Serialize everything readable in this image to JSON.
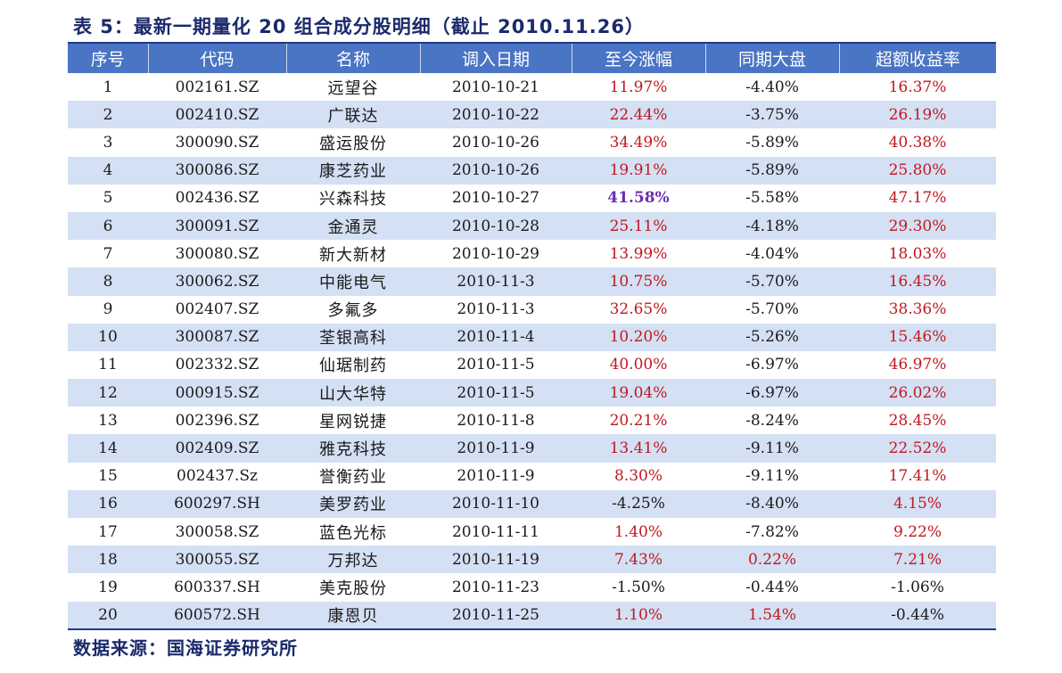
{
  "title": "表 5：最新一期量化 20 组合成分股明细（截止 2010.11.26）",
  "source": "数据来源：国海证券研究所",
  "colors": {
    "header_bg": "#4a74c4",
    "alt_row": "#d4e0f4",
    "positive": "#c0181f",
    "highlight": "#6a2fb0"
  },
  "headers": [
    "序号",
    "代码",
    "名称",
    "调入日期",
    "至今涨幅",
    "同期大盘",
    "超额收益率"
  ],
  "rows": [
    {
      "no": "1",
      "code": "002161.SZ",
      "name": "远望谷",
      "date": "2010-10-21",
      "gain": "11.97%",
      "market": "-4.40%",
      "excess": "16.37%"
    },
    {
      "no": "2",
      "code": "002410.SZ",
      "name": "广联达",
      "date": "2010-10-22",
      "gain": "22.44%",
      "market": "-3.75%",
      "excess": "26.19%"
    },
    {
      "no": "3",
      "code": "300090.SZ",
      "name": "盛运股份",
      "date": "2010-10-26",
      "gain": "34.49%",
      "market": "-5.89%",
      "excess": "40.38%"
    },
    {
      "no": "4",
      "code": "300086.SZ",
      "name": "康芝药业",
      "date": "2010-10-26",
      "gain": "19.91%",
      "market": "-5.89%",
      "excess": "25.80%"
    },
    {
      "no": "5",
      "code": "002436.SZ",
      "name": "兴森科技",
      "date": "2010-10-27",
      "gain": "41.58%",
      "market": "-5.58%",
      "excess": "47.17%"
    },
    {
      "no": "6",
      "code": "300091.SZ",
      "name": "金通灵",
      "date": "2010-10-28",
      "gain": "25.11%",
      "market": "-4.18%",
      "excess": "29.30%"
    },
    {
      "no": "7",
      "code": "300080.SZ",
      "name": "新大新材",
      "date": "2010-10-29",
      "gain": "13.99%",
      "market": "-4.04%",
      "excess": "18.03%"
    },
    {
      "no": "8",
      "code": "300062.SZ",
      "name": "中能电气",
      "date": "2010-11-3",
      "gain": "10.75%",
      "market": "-5.70%",
      "excess": "16.45%"
    },
    {
      "no": "9",
      "code": "002407.SZ",
      "name": "多氟多",
      "date": "2010-11-3",
      "gain": "32.65%",
      "market": "-5.70%",
      "excess": "38.36%"
    },
    {
      "no": "10",
      "code": "300087.SZ",
      "name": "荃银高科",
      "date": "2010-11-4",
      "gain": "10.20%",
      "market": "-5.26%",
      "excess": "15.46%"
    },
    {
      "no": "11",
      "code": "002332.SZ",
      "name": "仙琚制药",
      "date": "2010-11-5",
      "gain": "40.00%",
      "market": "-6.97%",
      "excess": "46.97%"
    },
    {
      "no": "12",
      "code": "000915.SZ",
      "name": "山大华特",
      "date": "2010-11-5",
      "gain": "19.04%",
      "market": "-6.97%",
      "excess": "26.02%"
    },
    {
      "no": "13",
      "code": "002396.SZ",
      "name": "星网锐捷",
      "date": "2010-11-8",
      "gain": "20.21%",
      "market": "-8.24%",
      "excess": "28.45%"
    },
    {
      "no": "14",
      "code": "002409.SZ",
      "name": "雅克科技",
      "date": "2010-11-9",
      "gain": "13.41%",
      "market": "-9.11%",
      "excess": "22.52%"
    },
    {
      "no": "15",
      "code": "002437.Sz",
      "name": "誉衡药业",
      "date": "2010-11-9",
      "gain": "8.30%",
      "market": "-9.11%",
      "excess": "17.41%"
    },
    {
      "no": "16",
      "code": "600297.SH",
      "name": "美罗药业",
      "date": "2010-11-10",
      "gain": "-4.25%",
      "market": "-8.40%",
      "excess": "4.15%"
    },
    {
      "no": "17",
      "code": "300058.SZ",
      "name": "蓝色光标",
      "date": "2010-11-11",
      "gain": "1.40%",
      "market": "-7.82%",
      "excess": "9.22%"
    },
    {
      "no": "18",
      "code": "300055.SZ",
      "name": "万邦达",
      "date": "2010-11-19",
      "gain": "7.43%",
      "market": "0.22%",
      "excess": "7.21%"
    },
    {
      "no": "19",
      "code": "600337.SH",
      "name": "美克股份",
      "date": "2010-11-23",
      "gain": "-1.50%",
      "market": "-0.44%",
      "excess": "-1.06%"
    },
    {
      "no": "20",
      "code": "600572.SH",
      "name": "康恩贝",
      "date": "2010-11-25",
      "gain": "1.10%",
      "market": "1.54%",
      "excess": "-0.44%"
    }
  ]
}
